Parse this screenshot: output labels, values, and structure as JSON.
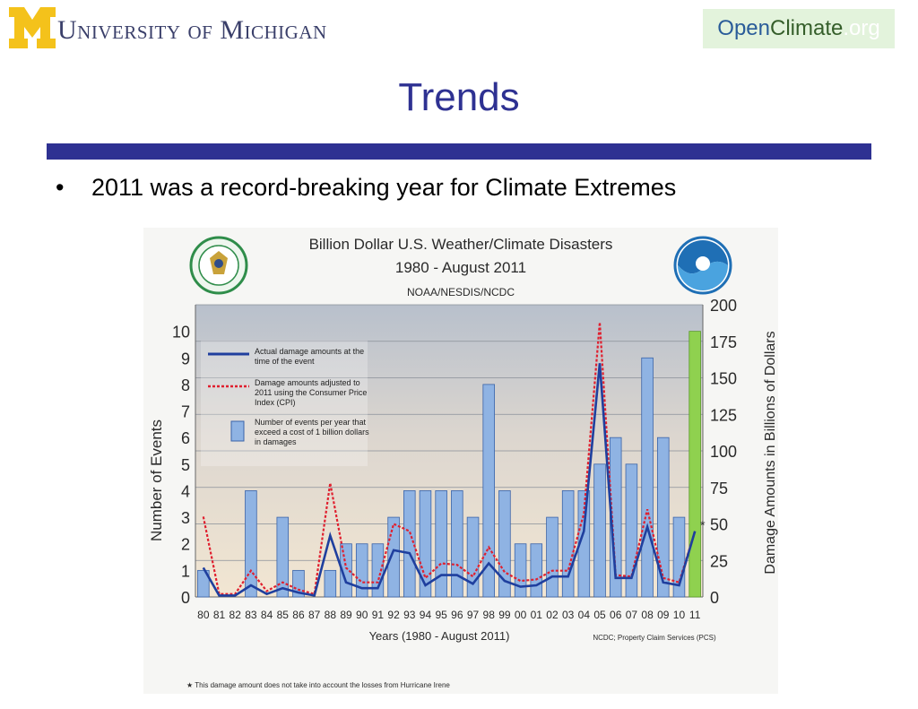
{
  "header": {
    "university_name": "University of Michigan",
    "badge": {
      "open": "Open",
      "climate": "Climate",
      "org": ".org"
    }
  },
  "slide": {
    "title": "Trends",
    "bullets": [
      "2011 was a record-breaking year for Climate Extremes"
    ]
  },
  "colors": {
    "title_blue": "#2e3192",
    "bar_blue": "#8fb3e3",
    "bar_2011": "#8fd14f",
    "actual_line": "#1f3f9e",
    "adjusted_line": "#e0202f"
  },
  "chart_data": {
    "type": "bar",
    "title": "Billion Dollar U.S. Weather/Climate Disasters",
    "subtitle": "1980 - August 2011",
    "source_top": "NOAA/NESDIS/NCDC",
    "xlabel": "Years (1980 - August 2011)",
    "ylabel": "Number of Events",
    "y2label": "Damage Amounts in Billions of Dollars",
    "source_bottom": "NCDC; Property Claim Services (PCS)",
    "footnote": "★ This damage amount does not take into account the losses from Hurricane Irene",
    "categories": [
      "80",
      "81",
      "82",
      "83",
      "84",
      "85",
      "86",
      "87",
      "88",
      "89",
      "90",
      "91",
      "92",
      "93",
      "94",
      "95",
      "96",
      "97",
      "98",
      "99",
      "00",
      "01",
      "02",
      "03",
      "04",
      "05",
      "06",
      "07",
      "08",
      "09",
      "10",
      "11"
    ],
    "ylim": [
      0,
      11
    ],
    "y_ticks": [
      0,
      1,
      2,
      3,
      4,
      5,
      6,
      7,
      8,
      9,
      10
    ],
    "y2lim": [
      0,
      200
    ],
    "y2_ticks": [
      0,
      25,
      50,
      75,
      100,
      125,
      150,
      175,
      200
    ],
    "series": [
      {
        "name": "Number of events per year that exceed a cost of 1 billion dollars in damages",
        "kind": "bar",
        "values": [
          1,
          0,
          0,
          4,
          0,
          3,
          1,
          0,
          1,
          2,
          2,
          2,
          3,
          4,
          4,
          4,
          4,
          3,
          8,
          4,
          2,
          2,
          3,
          4,
          4,
          5,
          6,
          5,
          9,
          6,
          3,
          10
        ]
      },
      {
        "name": "Actual damage amounts at the time of the event",
        "kind": "line",
        "values": [
          20,
          1,
          1,
          8,
          2,
          6,
          3,
          1,
          42,
          10,
          6,
          6,
          32,
          30,
          8,
          15,
          15,
          9,
          23,
          11,
          7,
          8,
          14,
          14,
          45,
          160,
          13,
          13,
          48,
          10,
          8,
          45
        ]
      },
      {
        "name": "Damage amounts adjusted to 2011 using the Consumer Price Index (CPI)",
        "kind": "line",
        "values": [
          55,
          2,
          2,
          18,
          4,
          10,
          5,
          2,
          78,
          20,
          10,
          10,
          50,
          45,
          13,
          23,
          22,
          14,
          34,
          17,
          11,
          12,
          18,
          18,
          57,
          188,
          15,
          14,
          60,
          13,
          10,
          45
        ]
      }
    ],
    "annotation_marker": "*",
    "legend_position": "top-left",
    "grid": true
  }
}
